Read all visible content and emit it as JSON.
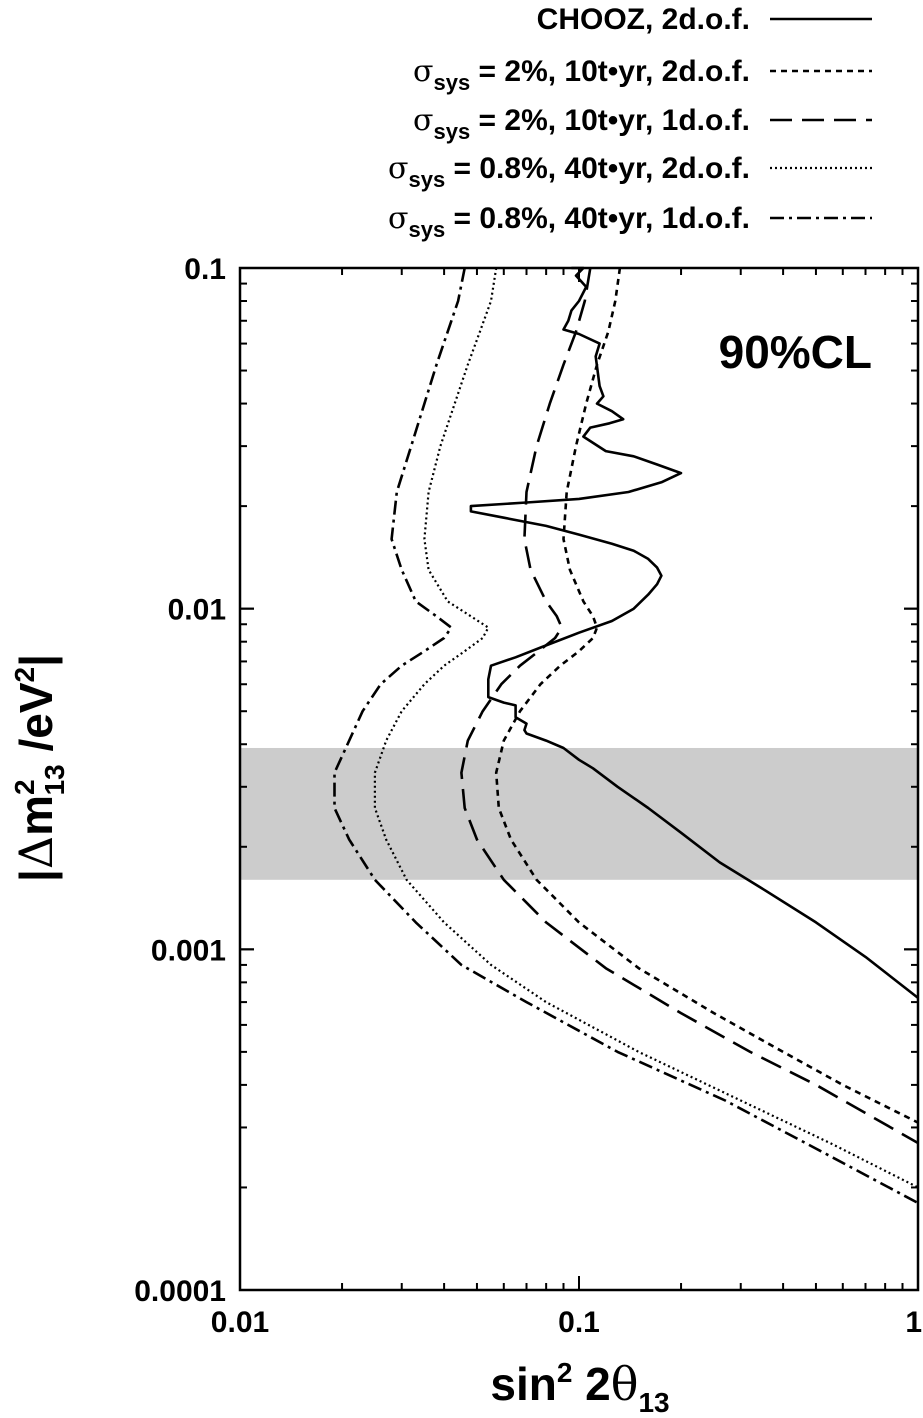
{
  "chart_data": {
    "type": "line",
    "annotation": "90%CL",
    "xaxis": {
      "scale": "log",
      "range": [
        0.01,
        1
      ],
      "ticks": [
        "0.01",
        "0.1",
        "1"
      ]
    },
    "yaxis": {
      "scale": "log",
      "range": [
        0.0001,
        0.1
      ],
      "ticks": [
        "0.0001",
        "0.001",
        "0.01",
        "0.1"
      ]
    },
    "xlabel": {
      "main": "sin",
      "sup": "2",
      "mid": " 2",
      "greek": "θ",
      "sub": "13"
    },
    "ylabel": {
      "open": "|",
      "greek": "Δ",
      "m": "m",
      "sup": "2",
      "sub": "13",
      "rest": " /eV",
      "sup2": "2",
      "close": "|"
    },
    "band": {
      "y_low": 0.0016,
      "y_high": 0.0039,
      "color": "#cccccc"
    },
    "legend": {
      "placement": "top-right",
      "entries": [
        {
          "text": "CHOOZ, 2d.o.f.",
          "sigma": false
        },
        {
          "sigma_sub": "sys",
          "text": " = 2%, 10t•yr, 2d.o.f.",
          "sigma": true
        },
        {
          "sigma_sub": "sys",
          "text": " = 2%, 10t•yr, 1d.o.f.",
          "sigma": true
        },
        {
          "sigma_sub": "sys",
          "text": " = 0.8%, 40t•yr, 2d.o.f.",
          "sigma": true
        },
        {
          "sigma_sub": "sys",
          "text": " = 0.8%, 40t•yr, 1d.o.f.",
          "sigma": true
        }
      ]
    },
    "series": [
      {
        "name": "CHOOZ, 2d.o.f.",
        "dash": "solid",
        "points": [
          [
            0.095,
            0.1
          ],
          [
            0.103,
            0.1
          ],
          [
            0.098,
            0.095
          ],
          [
            0.105,
            0.088
          ],
          [
            0.1,
            0.08
          ],
          [
            0.095,
            0.075
          ],
          [
            0.093,
            0.07
          ],
          [
            0.09,
            0.066
          ],
          [
            0.1,
            0.064
          ],
          [
            0.115,
            0.06
          ],
          [
            0.112,
            0.055
          ],
          [
            0.115,
            0.045
          ],
          [
            0.118,
            0.042
          ],
          [
            0.113,
            0.04
          ],
          [
            0.125,
            0.038
          ],
          [
            0.135,
            0.036
          ],
          [
            0.123,
            0.035
          ],
          [
            0.108,
            0.034
          ],
          [
            0.103,
            0.032
          ],
          [
            0.12,
            0.029
          ],
          [
            0.145,
            0.028
          ],
          [
            0.17,
            0.0265
          ],
          [
            0.2,
            0.025
          ],
          [
            0.175,
            0.0235
          ],
          [
            0.14,
            0.022
          ],
          [
            0.1,
            0.021
          ],
          [
            0.07,
            0.0205
          ],
          [
            0.048,
            0.02
          ],
          [
            0.048,
            0.0193
          ],
          [
            0.06,
            0.0185
          ],
          [
            0.08,
            0.0175
          ],
          [
            0.1,
            0.0165
          ],
          [
            0.125,
            0.0155
          ],
          [
            0.145,
            0.0148
          ],
          [
            0.16,
            0.014
          ],
          [
            0.17,
            0.0132
          ],
          [
            0.175,
            0.0125
          ],
          [
            0.17,
            0.0118
          ],
          [
            0.16,
            0.011
          ],
          [
            0.145,
            0.01
          ],
          [
            0.125,
            0.0092
          ],
          [
            0.1,
            0.0085
          ],
          [
            0.08,
            0.0078
          ],
          [
            0.065,
            0.0072
          ],
          [
            0.055,
            0.0068
          ],
          [
            0.054,
            0.0062
          ],
          [
            0.054,
            0.0055
          ],
          [
            0.06,
            0.0053
          ],
          [
            0.065,
            0.0052
          ],
          [
            0.065,
            0.0048
          ],
          [
            0.07,
            0.0046
          ],
          [
            0.069,
            0.0044
          ],
          [
            0.07,
            0.0043
          ],
          [
            0.08,
            0.0041
          ],
          [
            0.09,
            0.0039
          ],
          [
            0.1,
            0.0036
          ],
          [
            0.11,
            0.0034
          ],
          [
            0.13,
            0.003
          ],
          [
            0.16,
            0.0026
          ],
          [
            0.2,
            0.0022
          ],
          [
            0.26,
            0.0018
          ],
          [
            0.35,
            0.0015
          ],
          [
            0.5,
            0.0012
          ],
          [
            0.7,
            0.00095
          ],
          [
            1.0,
            0.00072
          ]
        ]
      },
      {
        "name": "σsys = 2%, 10t•yr, 2d.o.f.",
        "dash": "short",
        "points": [
          [
            0.132,
            0.1
          ],
          [
            0.128,
            0.08
          ],
          [
            0.122,
            0.065
          ],
          [
            0.113,
            0.052
          ],
          [
            0.105,
            0.04
          ],
          [
            0.098,
            0.03
          ],
          [
            0.092,
            0.022
          ],
          [
            0.09,
            0.016
          ],
          [
            0.094,
            0.013
          ],
          [
            0.103,
            0.0105
          ],
          [
            0.11,
            0.0095
          ],
          [
            0.113,
            0.0088
          ],
          [
            0.11,
            0.0082
          ],
          [
            0.1,
            0.0075
          ],
          [
            0.088,
            0.0068
          ],
          [
            0.077,
            0.006
          ],
          [
            0.067,
            0.005
          ],
          [
            0.06,
            0.0041
          ],
          [
            0.057,
            0.0033
          ],
          [
            0.058,
            0.0026
          ],
          [
            0.063,
            0.0021
          ],
          [
            0.075,
            0.0016
          ],
          [
            0.1,
            0.0012
          ],
          [
            0.15,
            0.00088
          ],
          [
            0.25,
            0.00065
          ],
          [
            0.4,
            0.0005
          ],
          [
            0.6,
            0.0004
          ],
          [
            1.0,
            0.00031
          ]
        ]
      },
      {
        "name": "σsys = 2%, 10t•yr, 1d.o.f.",
        "dash": "long",
        "points": [
          [
            0.108,
            0.1
          ],
          [
            0.104,
            0.08
          ],
          [
            0.098,
            0.065
          ],
          [
            0.09,
            0.052
          ],
          [
            0.082,
            0.04
          ],
          [
            0.075,
            0.03
          ],
          [
            0.07,
            0.022
          ],
          [
            0.069,
            0.016
          ],
          [
            0.072,
            0.013
          ],
          [
            0.08,
            0.0105
          ],
          [
            0.086,
            0.0095
          ],
          [
            0.089,
            0.0088
          ],
          [
            0.085,
            0.0082
          ],
          [
            0.076,
            0.0075
          ],
          [
            0.067,
            0.0068
          ],
          [
            0.059,
            0.006
          ],
          [
            0.052,
            0.005
          ],
          [
            0.047,
            0.0041
          ],
          [
            0.045,
            0.0033
          ],
          [
            0.046,
            0.0026
          ],
          [
            0.05,
            0.0021
          ],
          [
            0.06,
            0.0016
          ],
          [
            0.08,
            0.0012
          ],
          [
            0.12,
            0.00088
          ],
          [
            0.2,
            0.00065
          ],
          [
            0.32,
            0.0005
          ],
          [
            0.5,
            0.0004
          ],
          [
            1.0,
            0.00027
          ]
        ]
      },
      {
        "name": "σsys = 0.8%, 40t•yr, 2d.o.f.",
        "dash": "dot",
        "points": [
          [
            0.057,
            0.1
          ],
          [
            0.055,
            0.08
          ],
          [
            0.051,
            0.065
          ],
          [
            0.047,
            0.052
          ],
          [
            0.043,
            0.04
          ],
          [
            0.039,
            0.03
          ],
          [
            0.036,
            0.022
          ],
          [
            0.035,
            0.016
          ],
          [
            0.036,
            0.013
          ],
          [
            0.041,
            0.0105
          ],
          [
            0.048,
            0.0095
          ],
          [
            0.054,
            0.0088
          ],
          [
            0.052,
            0.0082
          ],
          [
            0.046,
            0.0075
          ],
          [
            0.04,
            0.0068
          ],
          [
            0.035,
            0.006
          ],
          [
            0.03,
            0.005
          ],
          [
            0.027,
            0.0041
          ],
          [
            0.025,
            0.0033
          ],
          [
            0.025,
            0.0026
          ],
          [
            0.027,
            0.0021
          ],
          [
            0.031,
            0.0016
          ],
          [
            0.04,
            0.0012
          ],
          [
            0.055,
            0.0009
          ],
          [
            0.08,
            0.0007
          ],
          [
            0.15,
            0.0005
          ],
          [
            0.3,
            0.00036
          ],
          [
            0.55,
            0.00027
          ],
          [
            1.0,
            0.0002
          ]
        ]
      },
      {
        "name": "σsys = 0.8%, 40t•yr, 1d.o.f.",
        "dash": "dashdot",
        "points": [
          [
            0.046,
            0.1
          ],
          [
            0.044,
            0.08
          ],
          [
            0.041,
            0.065
          ],
          [
            0.038,
            0.052
          ],
          [
            0.035,
            0.04
          ],
          [
            0.032,
            0.03
          ],
          [
            0.029,
            0.022
          ],
          [
            0.028,
            0.016
          ],
          [
            0.03,
            0.013
          ],
          [
            0.033,
            0.0105
          ],
          [
            0.038,
            0.0095
          ],
          [
            0.042,
            0.0088
          ],
          [
            0.04,
            0.0082
          ],
          [
            0.035,
            0.0075
          ],
          [
            0.03,
            0.0068
          ],
          [
            0.026,
            0.006
          ],
          [
            0.023,
            0.005
          ],
          [
            0.021,
            0.0041
          ],
          [
            0.019,
            0.0033
          ],
          [
            0.019,
            0.0026
          ],
          [
            0.021,
            0.0021
          ],
          [
            0.025,
            0.0016
          ],
          [
            0.033,
            0.0012
          ],
          [
            0.045,
            0.0009
          ],
          [
            0.07,
            0.0007
          ],
          [
            0.13,
            0.0005
          ],
          [
            0.27,
            0.00036
          ],
          [
            0.5,
            0.00026
          ],
          [
            1.0,
            0.00018
          ]
        ]
      }
    ]
  }
}
